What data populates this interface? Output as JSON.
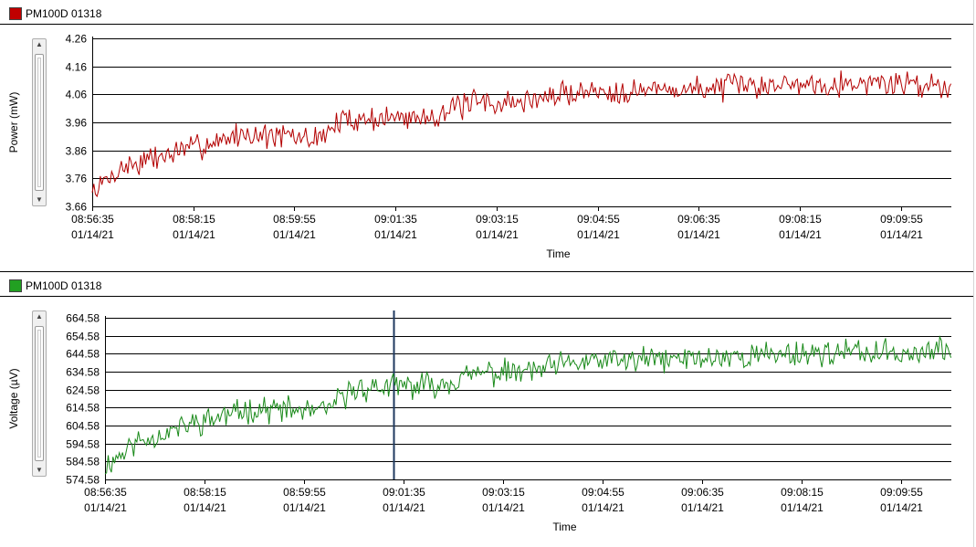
{
  "colors": {
    "series_top": "#b30000",
    "series_bottom": "#1a8a1a",
    "grid": "#000000",
    "cursor": "#1f3a5f",
    "swatch_top": "#c00000",
    "swatch_bottom": "#22a022"
  },
  "cursor_label": "cursor",
  "chart_data": [
    {
      "type": "line",
      "legend": "PM100D 01318",
      "title": "",
      "xlabel": "Time",
      "ylabel": "Power (mW)",
      "ylim": [
        3.66,
        4.26
      ],
      "yticks": [
        "3.66",
        "3.76",
        "3.86",
        "3.96",
        "4.06",
        "4.16",
        "4.26"
      ],
      "ytick_values": [
        3.66,
        3.76,
        3.86,
        3.96,
        4.06,
        4.16,
        4.26
      ],
      "xlim_seconds": [
        0,
        850
      ],
      "xticks": [
        {
          "time": "08:56:35",
          "date": "01/14/21",
          "t": 0
        },
        {
          "time": "08:58:15",
          "date": "01/14/21",
          "t": 100
        },
        {
          "time": "08:59:55",
          "date": "01/14/21",
          "t": 200
        },
        {
          "time": "09:01:35",
          "date": "01/14/21",
          "t": 300
        },
        {
          "time": "09:03:15",
          "date": "01/14/21",
          "t": 400
        },
        {
          "time": "09:04:55",
          "date": "01/14/21",
          "t": 500
        },
        {
          "time": "09:06:35",
          "date": "01/14/21",
          "t": 600
        },
        {
          "time": "09:08:15",
          "date": "01/14/21",
          "t": 700
        },
        {
          "time": "09:09:55",
          "date": "01/14/21",
          "t": 800
        }
      ],
      "trend": [
        [
          0,
          3.71
        ],
        [
          30,
          3.8
        ],
        [
          90,
          3.86
        ],
        [
          150,
          3.92
        ],
        [
          220,
          3.9
        ],
        [
          250,
          3.97
        ],
        [
          330,
          3.98
        ],
        [
          380,
          4.03
        ],
        [
          420,
          4.03
        ],
        [
          480,
          4.07
        ],
        [
          600,
          4.08
        ],
        [
          700,
          4.1
        ],
        [
          800,
          4.1
        ],
        [
          850,
          4.09
        ]
      ],
      "noise_amplitude": 0.035,
      "sample_interval_s": 1.6,
      "seed": 7
    },
    {
      "type": "line",
      "legend": "PM100D 01318",
      "title": "",
      "xlabel": "Time",
      "ylabel": "Voltage (µV)",
      "ylim": [
        574.58,
        664.58
      ],
      "yticks": [
        "574.58",
        "584.58",
        "594.58",
        "604.58",
        "614.58",
        "624.58",
        "634.58",
        "644.58",
        "654.58",
        "664.58"
      ],
      "ytick_values": [
        574.58,
        584.58,
        594.58,
        604.58,
        614.58,
        624.58,
        634.58,
        644.58,
        654.58,
        664.58
      ],
      "xlim_seconds": [
        0,
        850
      ],
      "xticks": [
        {
          "time": "08:56:35",
          "date": "01/14/21",
          "t": 0
        },
        {
          "time": "08:58:15",
          "date": "01/14/21",
          "t": 100
        },
        {
          "time": "08:59:55",
          "date": "01/14/21",
          "t": 200
        },
        {
          "time": "09:01:35",
          "date": "01/14/21",
          "t": 300
        },
        {
          "time": "09:03:15",
          "date": "01/14/21",
          "t": 400
        },
        {
          "time": "09:04:55",
          "date": "01/14/21",
          "t": 500
        },
        {
          "time": "09:06:35",
          "date": "01/14/21",
          "t": 600
        },
        {
          "time": "09:08:15",
          "date": "01/14/21",
          "t": 700
        },
        {
          "time": "09:09:55",
          "date": "01/14/21",
          "t": 800
        }
      ],
      "trend": [
        [
          0,
          582
        ],
        [
          30,
          595
        ],
        [
          90,
          606
        ],
        [
          150,
          614
        ],
        [
          220,
          612
        ],
        [
          250,
          625
        ],
        [
          330,
          627
        ],
        [
          380,
          634
        ],
        [
          420,
          634
        ],
        [
          480,
          640
        ],
        [
          600,
          642
        ],
        [
          700,
          645
        ],
        [
          800,
          645
        ],
        [
          850,
          646
        ]
      ],
      "noise_amplitude": 5.5,
      "sample_interval_s": 1.6,
      "seed": 11,
      "cursor_t": 290
    }
  ]
}
